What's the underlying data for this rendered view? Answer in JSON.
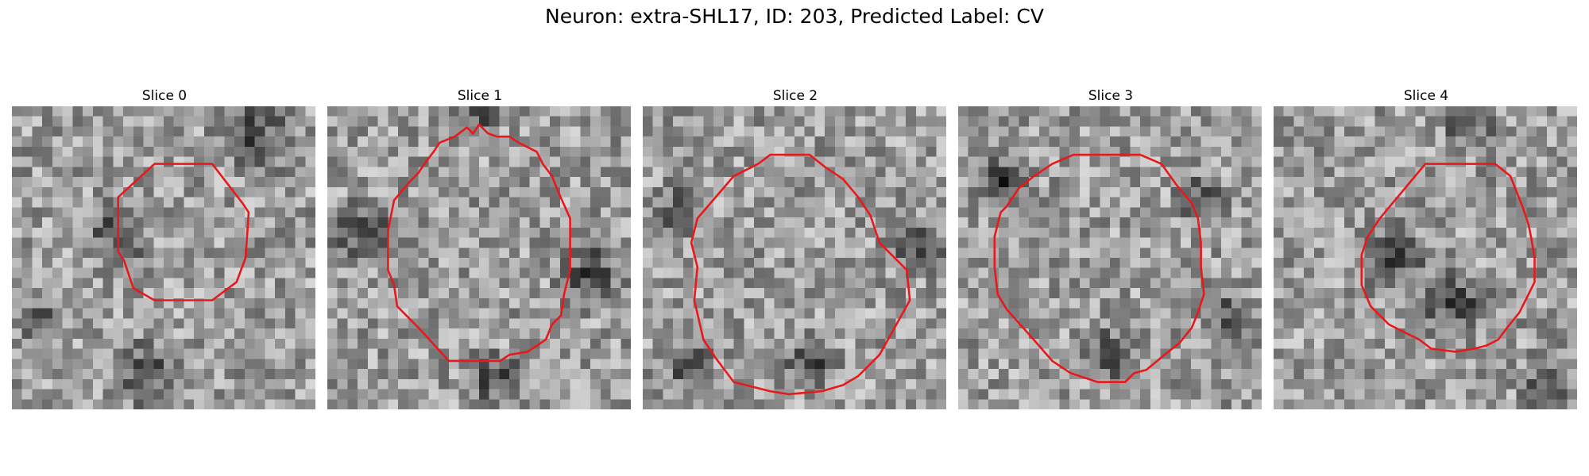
{
  "figure": {
    "title": "Neuron: extra-SHL17, ID: 203, Predicted Label: CV"
  },
  "panels": [
    {
      "title": "Slice 0",
      "seed": 11,
      "contour_color": "#e8191c",
      "contour": [
        [
          0.47,
          0.19
        ],
        [
          0.66,
          0.19
        ],
        [
          0.76,
          0.32
        ],
        [
          0.78,
          0.35
        ],
        [
          0.77,
          0.5
        ],
        [
          0.74,
          0.58
        ],
        [
          0.66,
          0.64
        ],
        [
          0.66,
          0.64
        ],
        [
          0.47,
          0.64
        ],
        [
          0.4,
          0.6
        ],
        [
          0.37,
          0.51
        ],
        [
          0.35,
          0.48
        ],
        [
          0.35,
          0.3
        ]
      ],
      "dark_blobs": [
        [
          0.8,
          0.1,
          0.16
        ],
        [
          0.35,
          0.42,
          0.13
        ],
        [
          0.45,
          0.88,
          0.14
        ],
        [
          0.1,
          0.7,
          0.1
        ]
      ]
    },
    {
      "title": "Slice 1",
      "seed": 23,
      "contour_color": "#e8191c",
      "contour": [
        [
          0.32,
          0.19
        ],
        [
          0.35,
          0.15
        ],
        [
          0.37,
          0.12
        ],
        [
          0.42,
          0.1
        ],
        [
          0.46,
          0.07
        ],
        [
          0.48,
          0.09
        ],
        [
          0.5,
          0.06
        ],
        [
          0.53,
          0.09
        ],
        [
          0.56,
          0.1
        ],
        [
          0.6,
          0.1
        ],
        [
          0.63,
          0.12
        ],
        [
          0.69,
          0.15
        ],
        [
          0.71,
          0.19
        ],
        [
          0.74,
          0.23
        ],
        [
          0.76,
          0.28
        ],
        [
          0.8,
          0.37
        ],
        [
          0.8,
          0.54
        ],
        [
          0.78,
          0.62
        ],
        [
          0.77,
          0.69
        ],
        [
          0.74,
          0.72
        ],
        [
          0.72,
          0.77
        ],
        [
          0.66,
          0.81
        ],
        [
          0.6,
          0.82
        ],
        [
          0.57,
          0.84
        ],
        [
          0.4,
          0.84
        ],
        [
          0.3,
          0.73
        ],
        [
          0.23,
          0.66
        ],
        [
          0.22,
          0.59
        ],
        [
          0.2,
          0.54
        ],
        [
          0.2,
          0.41
        ],
        [
          0.22,
          0.31
        ],
        [
          0.27,
          0.25
        ],
        [
          0.3,
          0.22
        ]
      ],
      "dark_blobs": [
        [
          0.12,
          0.42,
          0.14
        ],
        [
          0.87,
          0.55,
          0.14
        ],
        [
          0.5,
          0.03,
          0.1
        ],
        [
          0.55,
          0.9,
          0.12
        ]
      ]
    },
    {
      "title": "Slice 2",
      "seed": 37,
      "contour_color": "#e8191c",
      "contour": [
        [
          0.42,
          0.16
        ],
        [
          0.55,
          0.16
        ],
        [
          0.6,
          0.2
        ],
        [
          0.66,
          0.24
        ],
        [
          0.71,
          0.3
        ],
        [
          0.75,
          0.36
        ],
        [
          0.78,
          0.45
        ],
        [
          0.87,
          0.54
        ],
        [
          0.88,
          0.64
        ],
        [
          0.83,
          0.73
        ],
        [
          0.78,
          0.82
        ],
        [
          0.71,
          0.89
        ],
        [
          0.66,
          0.92
        ],
        [
          0.59,
          0.94
        ],
        [
          0.48,
          0.95
        ],
        [
          0.42,
          0.94
        ],
        [
          0.3,
          0.91
        ],
        [
          0.24,
          0.83
        ],
        [
          0.2,
          0.77
        ],
        [
          0.17,
          0.64
        ],
        [
          0.18,
          0.53
        ],
        [
          0.16,
          0.45
        ],
        [
          0.18,
          0.37
        ],
        [
          0.24,
          0.3
        ],
        [
          0.3,
          0.23
        ],
        [
          0.38,
          0.19
        ]
      ],
      "dark_blobs": [
        [
          0.12,
          0.35,
          0.12
        ],
        [
          0.9,
          0.45,
          0.12
        ],
        [
          0.55,
          0.85,
          0.12
        ],
        [
          0.15,
          0.85,
          0.1
        ]
      ]
    },
    {
      "title": "Slice 3",
      "seed": 53,
      "contour_color": "#e8191c",
      "contour": [
        [
          0.38,
          0.16
        ],
        [
          0.6,
          0.16
        ],
        [
          0.67,
          0.19
        ],
        [
          0.72,
          0.26
        ],
        [
          0.77,
          0.32
        ],
        [
          0.79,
          0.37
        ],
        [
          0.8,
          0.45
        ],
        [
          0.8,
          0.53
        ],
        [
          0.81,
          0.62
        ],
        [
          0.79,
          0.68
        ],
        [
          0.77,
          0.73
        ],
        [
          0.73,
          0.78
        ],
        [
          0.68,
          0.82
        ],
        [
          0.62,
          0.87
        ],
        [
          0.58,
          0.88
        ],
        [
          0.55,
          0.91
        ],
        [
          0.46,
          0.91
        ],
        [
          0.37,
          0.88
        ],
        [
          0.31,
          0.84
        ],
        [
          0.24,
          0.76
        ],
        [
          0.16,
          0.67
        ],
        [
          0.13,
          0.62
        ],
        [
          0.12,
          0.53
        ],
        [
          0.12,
          0.43
        ],
        [
          0.14,
          0.35
        ],
        [
          0.16,
          0.33
        ],
        [
          0.2,
          0.27
        ],
        [
          0.25,
          0.23
        ],
        [
          0.31,
          0.19
        ]
      ],
      "dark_blobs": [
        [
          0.15,
          0.25,
          0.12
        ],
        [
          0.8,
          0.3,
          0.1
        ],
        [
          0.5,
          0.82,
          0.12
        ],
        [
          0.88,
          0.7,
          0.1
        ]
      ]
    },
    {
      "title": "Slice 4",
      "seed": 71,
      "contour_color": "#e8191c",
      "contour": [
        [
          0.5,
          0.19
        ],
        [
          0.73,
          0.19
        ],
        [
          0.78,
          0.23
        ],
        [
          0.8,
          0.28
        ],
        [
          0.82,
          0.33
        ],
        [
          0.84,
          0.39
        ],
        [
          0.85,
          0.44
        ],
        [
          0.86,
          0.5
        ],
        [
          0.86,
          0.58
        ],
        [
          0.83,
          0.64
        ],
        [
          0.81,
          0.68
        ],
        [
          0.77,
          0.73
        ],
        [
          0.74,
          0.77
        ],
        [
          0.7,
          0.79
        ],
        [
          0.66,
          0.8
        ],
        [
          0.6,
          0.81
        ],
        [
          0.52,
          0.8
        ],
        [
          0.48,
          0.77
        ],
        [
          0.42,
          0.74
        ],
        [
          0.38,
          0.72
        ],
        [
          0.32,
          0.66
        ],
        [
          0.29,
          0.59
        ],
        [
          0.29,
          0.49
        ],
        [
          0.31,
          0.43
        ],
        [
          0.35,
          0.37
        ],
        [
          0.4,
          0.31
        ],
        [
          0.45,
          0.25
        ]
      ],
      "dark_blobs": [
        [
          0.6,
          0.65,
          0.16
        ],
        [
          0.65,
          0.05,
          0.12
        ],
        [
          0.4,
          0.5,
          0.14
        ],
        [
          0.9,
          0.92,
          0.12
        ]
      ]
    }
  ]
}
